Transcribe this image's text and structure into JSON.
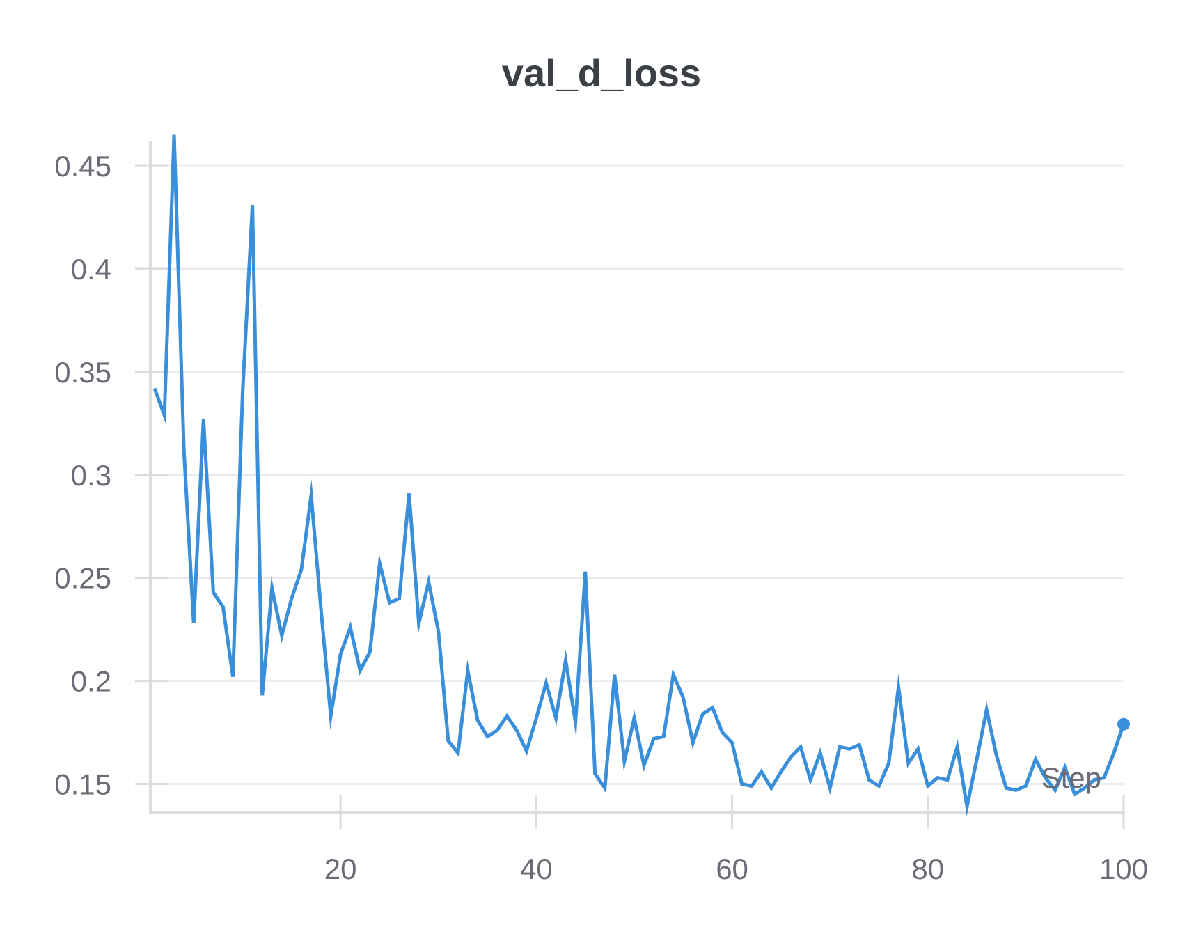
{
  "chart_data": {
    "type": "line",
    "title": "val_d_loss",
    "xlabel": "Step",
    "ylabel": "",
    "xlim": [
      1,
      100
    ],
    "ylim": [
      0.14,
      0.465
    ],
    "x_ticks": [
      20,
      40,
      60,
      80,
      100
    ],
    "x_tick_labels": [
      "20",
      "40",
      "60",
      "80",
      "100"
    ],
    "y_ticks": [
      0.15,
      0.2,
      0.25,
      0.3,
      0.35,
      0.4,
      0.45
    ],
    "y_tick_labels": [
      "0.15",
      "0.2",
      "0.25",
      "0.3",
      "0.35",
      "0.4",
      "0.45"
    ],
    "grid": true,
    "line_color": "#3a8fdb",
    "series": [
      {
        "x": [
          1,
          2,
          3,
          4,
          5,
          6,
          7,
          8,
          9,
          10,
          11,
          12,
          13,
          14,
          15,
          16,
          17,
          18,
          19,
          20,
          21,
          22,
          23,
          24,
          25,
          26,
          27,
          28,
          29,
          30,
          31,
          32,
          33,
          34,
          35,
          36,
          37,
          38,
          39,
          40,
          41,
          42,
          43,
          44,
          45,
          46,
          47,
          48,
          49,
          50,
          51,
          52,
          53,
          54,
          55,
          56,
          57,
          58,
          59,
          60,
          61,
          62,
          63,
          64,
          65,
          66,
          67,
          68,
          69,
          70,
          71,
          72,
          73,
          74,
          75,
          76,
          77,
          78,
          79,
          80,
          81,
          82,
          83,
          84,
          85,
          86,
          87,
          88,
          89,
          90,
          91,
          92,
          93,
          94,
          95,
          96,
          97,
          98,
          99,
          100
        ],
        "values": [
          0.342,
          0.329,
          0.465,
          0.312,
          0.228,
          0.327,
          0.243,
          0.236,
          0.202,
          0.34,
          0.431,
          0.193,
          0.245,
          0.222,
          0.24,
          0.254,
          0.29,
          0.235,
          0.183,
          0.213,
          0.226,
          0.205,
          0.214,
          0.257,
          0.238,
          0.24,
          0.291,
          0.228,
          0.248,
          0.224,
          0.171,
          0.165,
          0.205,
          0.181,
          0.173,
          0.176,
          0.183,
          0.176,
          0.166,
          0.182,
          0.199,
          0.182,
          0.21,
          0.18,
          0.253,
          0.155,
          0.148,
          0.203,
          0.161,
          0.182,
          0.159,
          0.172,
          0.173,
          0.203,
          0.192,
          0.17,
          0.184,
          0.187,
          0.175,
          0.17,
          0.15,
          0.149,
          0.156,
          0.148,
          0.156,
          0.163,
          0.168,
          0.152,
          0.165,
          0.148,
          0.168,
          0.167,
          0.169,
          0.152,
          0.149,
          0.16,
          0.197,
          0.16,
          0.167,
          0.149,
          0.153,
          0.152,
          0.168,
          0.139,
          0.162,
          0.186,
          0.164,
          0.148,
          0.147,
          0.149,
          0.162,
          0.153,
          0.147,
          0.158,
          0.145,
          0.148,
          0.152,
          0.153,
          0.165,
          0.179
        ]
      }
    ]
  }
}
